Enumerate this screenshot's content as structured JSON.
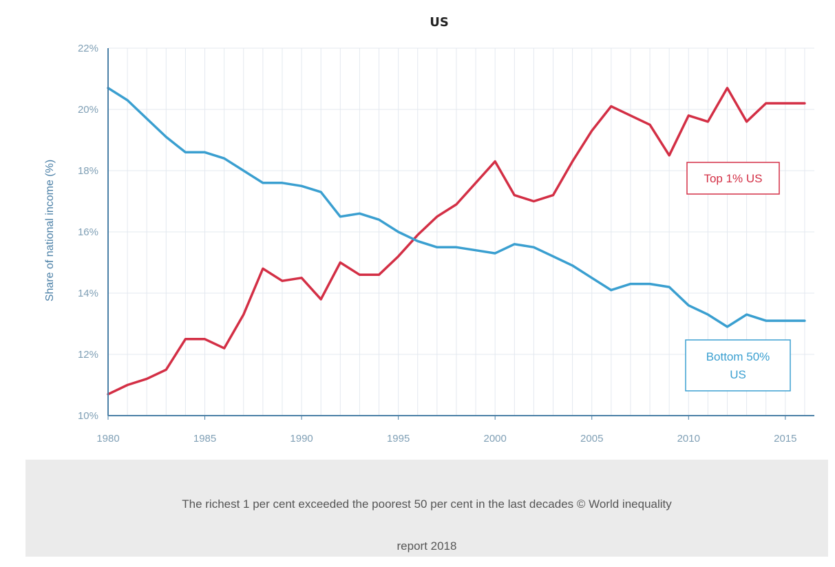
{
  "chart_data": {
    "type": "line",
    "title": "US",
    "xlabel": "",
    "ylabel": "Share of national income (%)",
    "x": [
      1980,
      1981,
      1982,
      1983,
      1984,
      1985,
      1986,
      1987,
      1988,
      1989,
      1990,
      1991,
      1992,
      1993,
      1994,
      1995,
      1996,
      1997,
      1998,
      1999,
      2000,
      2001,
      2002,
      2003,
      2004,
      2005,
      2006,
      2007,
      2008,
      2009,
      2010,
      2011,
      2012,
      2013,
      2014,
      2015,
      2016
    ],
    "xlim": [
      1980,
      2016.5
    ],
    "ylim": [
      10,
      22
    ],
    "x_ticks": [
      1980,
      1985,
      1990,
      1995,
      2000,
      2005,
      2010,
      2015
    ],
    "y_ticks": [
      10,
      12,
      14,
      16,
      18,
      20,
      22
    ],
    "y_tick_labels": [
      "10%",
      "12%",
      "14%",
      "16%",
      "18%",
      "20%",
      "22%"
    ],
    "grid": true,
    "series": [
      {
        "name": "Top 1% US",
        "color": "#d32f45",
        "values": [
          10.7,
          11.0,
          11.2,
          11.5,
          12.5,
          12.5,
          12.2,
          13.3,
          14.8,
          14.4,
          14.5,
          13.8,
          15.0,
          14.6,
          14.6,
          15.2,
          15.9,
          16.5,
          16.9,
          17.6,
          18.3,
          17.2,
          17.0,
          17.2,
          18.3,
          19.3,
          20.1,
          19.8,
          19.5,
          18.5,
          19.8,
          19.6,
          20.7,
          19.6,
          20.2,
          20.2,
          20.2
        ],
        "label_lines": [
          "Top 1% US"
        ]
      },
      {
        "name": "Bottom 50% US",
        "color": "#3a9fd0",
        "values": [
          20.7,
          20.3,
          19.7,
          19.1,
          18.6,
          18.6,
          18.4,
          18.0,
          17.6,
          17.6,
          17.5,
          17.3,
          16.5,
          16.6,
          16.4,
          16.0,
          15.7,
          15.5,
          15.5,
          15.4,
          15.3,
          15.6,
          15.5,
          15.2,
          14.9,
          14.5,
          14.1,
          14.3,
          14.3,
          14.2,
          13.6,
          13.3,
          12.9,
          13.3,
          13.1,
          13.1,
          13.1
        ],
        "label_lines": [
          "Bottom 50%",
          "US"
        ]
      }
    ]
  },
  "caption": {
    "line1": "The richest 1 per cent exceeded the poorest 50 per cent in the last decades © World inequality",
    "line2": "report 2018"
  }
}
